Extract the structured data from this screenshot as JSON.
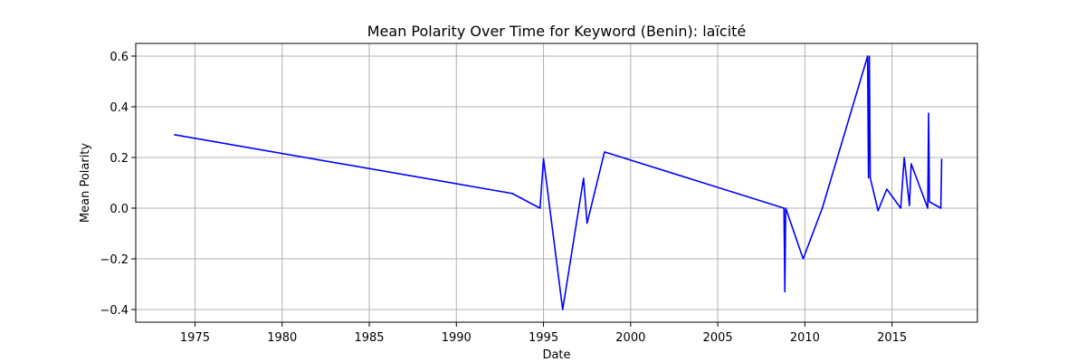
{
  "chart_data": {
    "type": "line",
    "title": "Mean Polarity Over Time for Keyword (Benin): laïcité",
    "xlabel": "Date",
    "ylabel": "Mean Polarity",
    "xlim": [
      1971.6,
      2019.9
    ],
    "ylim": [
      -0.45,
      0.65
    ],
    "x_ticks": [
      1975,
      1980,
      1985,
      1990,
      1995,
      2000,
      2005,
      2010,
      2015
    ],
    "y_ticks": [
      -0.4,
      -0.2,
      0.0,
      0.2,
      0.4,
      0.6
    ],
    "y_tick_labels": [
      "−0.4",
      "−0.2",
      "0.0",
      "0.2",
      "0.4",
      "0.6"
    ],
    "grid": true,
    "line_color": "#0000ff",
    "series": [
      {
        "x": [
          1973.8,
          1993.2,
          1994.8,
          1995.0,
          1996.1,
          1997.3,
          1997.5,
          1998.5,
          2008.8,
          2008.85,
          2008.9,
          2009.9,
          2011.0,
          2013.6,
          2013.65,
          2013.7,
          2013.75,
          2014.2,
          2014.7,
          2015.5,
          2015.7,
          2016.0,
          2016.1,
          2017.05,
          2017.1,
          2017.15,
          2017.8,
          2017.85
        ],
        "y": [
          0.29,
          0.058,
          0.0,
          0.195,
          -0.4,
          0.118,
          -0.06,
          0.222,
          0.0,
          -0.33,
          0.0,
          -0.2,
          0.0,
          0.6,
          0.12,
          0.6,
          0.12,
          -0.01,
          0.075,
          0.0,
          0.2,
          0.01,
          0.175,
          0.0,
          0.375,
          0.025,
          0.0,
          0.195
        ]
      }
    ]
  }
}
